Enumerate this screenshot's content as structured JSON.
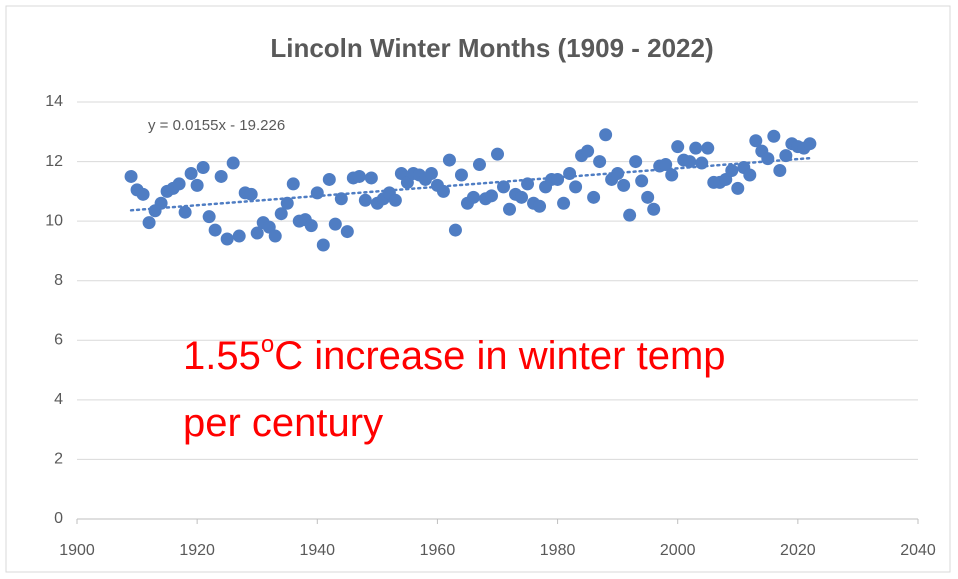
{
  "chart_data": {
    "type": "scatter",
    "title": "Lincoln Winter Months (1909 - 2022)",
    "color": "#4f7dc3",
    "grid": true,
    "xlim": [
      1900,
      2040
    ],
    "xticks": [
      1900,
      1920,
      1940,
      1960,
      1980,
      2000,
      2020,
      2040
    ],
    "ylim": [
      0,
      14
    ],
    "yticks": [
      0,
      2,
      4,
      6,
      8,
      10,
      12,
      14
    ],
    "x": [
      1909,
      1910,
      1911,
      1912,
      1913,
      1914,
      1915,
      1916,
      1917,
      1918,
      1919,
      1920,
      1921,
      1922,
      1923,
      1924,
      1925,
      1926,
      1927,
      1928,
      1929,
      1930,
      1931,
      1932,
      1933,
      1934,
      1935,
      1936,
      1937,
      1938,
      1939,
      1940,
      1941,
      1942,
      1943,
      1944,
      1945,
      1946,
      1947,
      1948,
      1949,
      1950,
      1951,
      1952,
      1953,
      1954,
      1955,
      1956,
      1957,
      1958,
      1959,
      1960,
      1961,
      1962,
      1963,
      1964,
      1965,
      1966,
      1967,
      1968,
      1969,
      1970,
      1971,
      1972,
      1973,
      1974,
      1975,
      1976,
      1977,
      1978,
      1979,
      1980,
      1981,
      1982,
      1983,
      1984,
      1985,
      1986,
      1987,
      1988,
      1989,
      1990,
      1991,
      1992,
      1993,
      1994,
      1995,
      1996,
      1997,
      1998,
      1999,
      2000,
      2001,
      2002,
      2003,
      2004,
      2005,
      2006,
      2007,
      2008,
      2009,
      2010,
      2011,
      2012,
      2013,
      2014,
      2015,
      2016,
      2017,
      2018,
      2019,
      2020,
      2021,
      2022
    ],
    "values": [
      11.5,
      11.05,
      10.9,
      9.95,
      10.35,
      10.6,
      11.0,
      11.1,
      11.25,
      10.3,
      11.6,
      11.2,
      11.8,
      10.15,
      9.7,
      11.5,
      9.4,
      11.95,
      9.5,
      10.95,
      10.9,
      9.6,
      9.95,
      9.8,
      9.5,
      10.25,
      10.6,
      11.25,
      10.0,
      10.05,
      9.85,
      10.95,
      9.2,
      11.4,
      9.9,
      10.75,
      9.65,
      11.45,
      11.5,
      10.7,
      11.45,
      10.6,
      10.75,
      10.95,
      10.7,
      11.6,
      11.3,
      11.6,
      11.55,
      11.4,
      11.6,
      11.2,
      11.0,
      12.05,
      9.7,
      11.55,
      10.6,
      10.8,
      11.9,
      10.75,
      10.85,
      12.25,
      11.15,
      10.4,
      10.9,
      10.8,
      11.25,
      10.6,
      10.5,
      11.15,
      11.4,
      11.4,
      10.6,
      11.6,
      11.15,
      12.2,
      12.35,
      10.8,
      12.0,
      12.9,
      11.4,
      11.6,
      11.2,
      10.2,
      12.0,
      11.35,
      10.8,
      10.4,
      11.85,
      11.9,
      11.55,
      12.5,
      12.05,
      12.0,
      12.45,
      11.95,
      12.45,
      11.3,
      11.3,
      11.4,
      11.7,
      11.1,
      11.8,
      11.55,
      12.7,
      12.35,
      12.1,
      12.85,
      11.7,
      12.2,
      12.6,
      12.5,
      12.45,
      12.6
    ],
    "trendline": {
      "label": "y = 0.0155x - 19.226",
      "slope": 0.0155,
      "intercept": -19.226,
      "x": [
        1909,
        2022
      ]
    },
    "annotation": {
      "lines": [
        [
          "1.55",
          "o",
          "C increase in winter temp"
        ],
        [
          "per century"
        ]
      ],
      "color": "#ff0000"
    }
  }
}
